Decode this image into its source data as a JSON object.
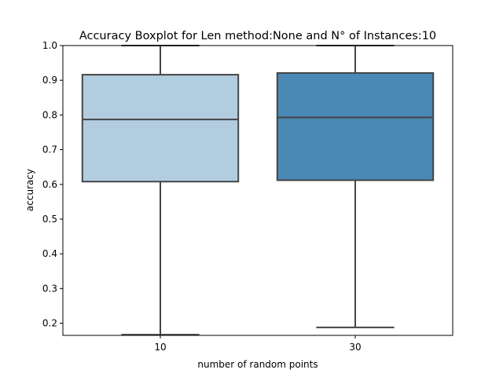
{
  "chart_data": {
    "type": "boxplot",
    "title": "Accuracy Boxplot for Len method:None and N° of Instances:10",
    "xlabel": "number of random points",
    "ylabel": "accuracy",
    "ylim": [
      0.165,
      1.0
    ],
    "yticks": [
      "0.2",
      "0.3",
      "0.4",
      "0.5",
      "0.6",
      "0.7",
      "0.8",
      "0.9",
      "1.0"
    ],
    "categories": [
      "10",
      "30"
    ],
    "boxes": [
      {
        "category": "10",
        "min": 0.167,
        "q1": 0.608,
        "median": 0.787,
        "q3": 0.916,
        "max": 1.0,
        "color": "#b3cde0"
      },
      {
        "category": "30",
        "min": 0.188,
        "q1": 0.612,
        "median": 0.793,
        "q3": 0.921,
        "max": 1.0,
        "color": "#4a88b5"
      }
    ],
    "grid": false
  }
}
